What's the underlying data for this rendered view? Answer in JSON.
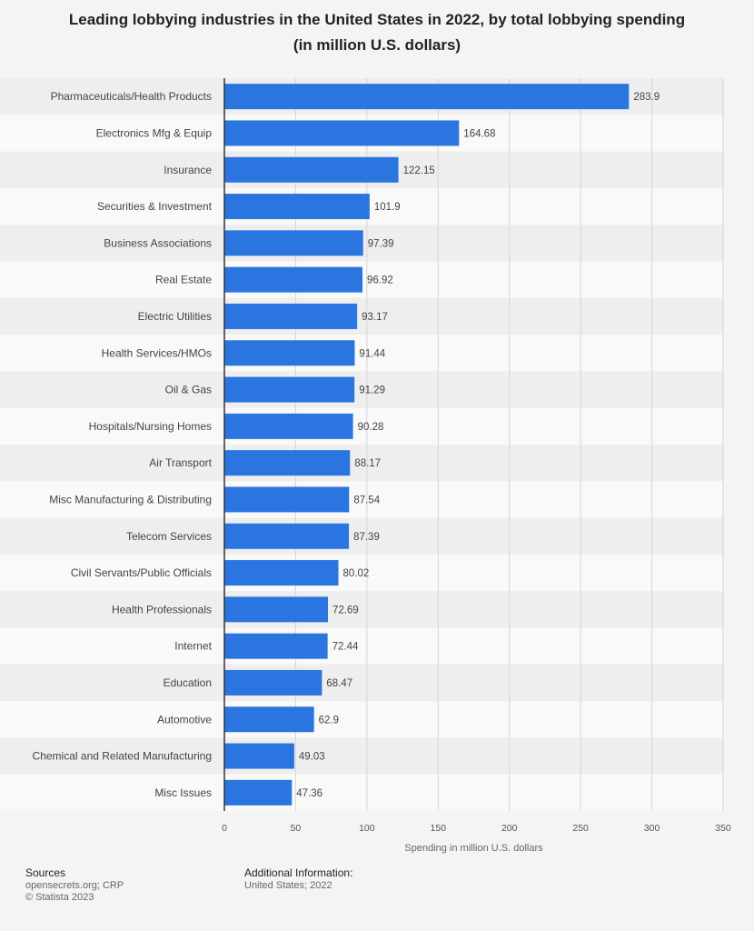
{
  "title_lines": [
    "Leading lobbying industries in the United States in 2022, by total lobbying spending",
    "(in million U.S. dollars)"
  ],
  "footer": {
    "sources_heading": "Sources",
    "sources_line": "opensecrets.org; CRP",
    "copyright": "© Statista 2023",
    "additional_heading": "Additional Information:",
    "additional_line": "United States; 2022"
  },
  "colors": {
    "bar": "#2a75e0",
    "band_dark": "#eeeeee",
    "band_light": "#f9f9f9",
    "grid": "#d6d6d6"
  },
  "chart_data": {
    "type": "bar",
    "orientation": "horizontal",
    "categories": [
      "Pharmaceuticals/Health Products",
      "Electronics Mfg & Equip",
      "Insurance",
      "Securities & Investment",
      "Business Associations",
      "Real Estate",
      "Electric Utilities",
      "Health Services/HMOs",
      "Oil & Gas",
      "Hospitals/Nursing Homes",
      "Air Transport",
      "Misc Manufacturing & Distributing",
      "Telecom Services",
      "Civil Servants/Public Officials",
      "Health Professionals",
      "Internet",
      "Education",
      "Automotive",
      "Chemical and Related Manufacturing",
      "Misc Issues"
    ],
    "values": [
      283.9,
      164.68,
      122.15,
      101.9,
      97.39,
      96.92,
      93.17,
      91.44,
      91.29,
      90.28,
      88.17,
      87.54,
      87.39,
      80.02,
      72.69,
      72.44,
      68.47,
      62.9,
      49.03,
      47.36
    ],
    "value_labels": [
      "283.9",
      "164.68",
      "122.15",
      "101.9",
      "97.39",
      "96.92",
      "93.17",
      "91.44",
      "91.29",
      "90.28",
      "88.17",
      "87.54",
      "87.39",
      "80.02",
      "72.69",
      "72.44",
      "68.47",
      "62.9",
      "49.03",
      "47.36"
    ],
    "xlabel": "Spending in million U.S. dollars",
    "xlim": [
      0,
      350
    ],
    "xticks": [
      0,
      50,
      100,
      150,
      200,
      250,
      300,
      350
    ],
    "xtick_labels": [
      "0",
      "50",
      "100",
      "150",
      "200",
      "250",
      "300",
      "350"
    ],
    "grid": true
  }
}
